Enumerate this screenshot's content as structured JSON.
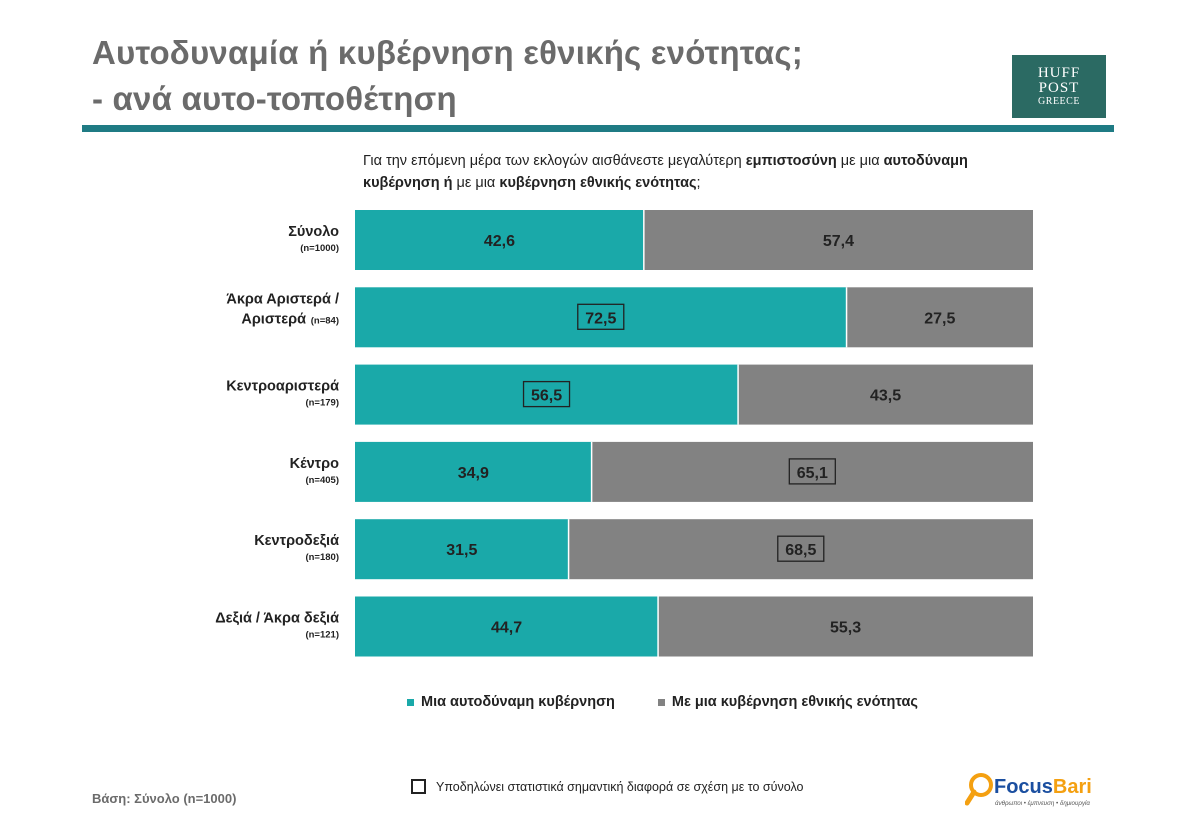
{
  "title": {
    "line1": "Αυτοδυναμία ή κυβέρνηση εθνικής ενότητας;",
    "line2": "- ανά αυτο-τοποθέτηση"
  },
  "logo_huff": {
    "line1": "HUFF",
    "line2": "POST",
    "line3": "GREECE"
  },
  "question": {
    "p1": "Για την επόμενη μέρα των εκλογών αισθάνεστε μεγαλύτερη ",
    "b1": "εμπιστοσύνη",
    "p2": " με μια ",
    "b2": "αυτοδύναμη κυβέρνηση ή",
    "p3": " με μια ",
    "b3": "κυβέρνηση εθνικής ενότητας",
    "p4": ";"
  },
  "chart_data": {
    "type": "bar",
    "orientation": "horizontal",
    "stacked": true,
    "xlim": [
      0,
      100
    ],
    "categories": [
      {
        "label_lines": [
          "Σύνολο"
        ],
        "n": "(n=1000)"
      },
      {
        "label_lines": [
          "Άκρα Αριστερά /",
          "Αριστερά"
        ],
        "n": "(n=84)"
      },
      {
        "label_lines": [
          "Κεντροαριστερά"
        ],
        "n": "(n=179)"
      },
      {
        "label_lines": [
          "Κέντρο"
        ],
        "n": "(n=405)"
      },
      {
        "label_lines": [
          "Κεντροδεξιά"
        ],
        "n": "(n=180)"
      },
      {
        "label_lines": [
          "Δεξιά / Άκρα δεξιά"
        ],
        "n": "(n=121)"
      }
    ],
    "series": [
      {
        "name": "Μια αυτοδύναμη κυβέρνηση",
        "color": "#1aa9a9",
        "values": [
          42.6,
          72.5,
          56.5,
          34.9,
          31.5,
          44.7
        ],
        "labels": [
          "42,6",
          "72,5",
          "56,5",
          "34,9",
          "31,5",
          "44,7"
        ],
        "significant": [
          false,
          true,
          true,
          false,
          false,
          false
        ]
      },
      {
        "name": "Με μια κυβέρνηση εθνικής ενότητας",
        "color": "#828282",
        "values": [
          57.4,
          27.5,
          43.5,
          65.1,
          68.5,
          55.3
        ],
        "labels": [
          "57,4",
          "27,5",
          "43,5",
          "65,1",
          "68,5",
          "55,3"
        ],
        "significant": [
          false,
          false,
          false,
          true,
          true,
          false
        ]
      }
    ],
    "legend_position": "bottom",
    "grid": false
  },
  "footer": {
    "base": "Βάση: Σύνολο (n=1000)",
    "note": "Υποδηλώνει στατιστικά σημαντική διαφορά σε σχέση με το σύνολο"
  },
  "logo_focus": {
    "name_part1": "Focus",
    "name_part2": "Bari",
    "tagline": "άνθρωποι • έμπνευση • δημιουργία",
    "color_orange": "#f4a011",
    "color_blue": "#1b4fa0"
  }
}
